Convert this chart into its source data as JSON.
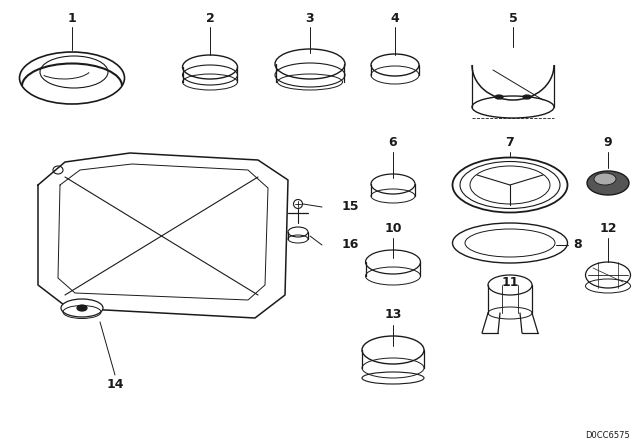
{
  "background_color": "#ffffff",
  "diagram_id": "D0CC6575"
}
